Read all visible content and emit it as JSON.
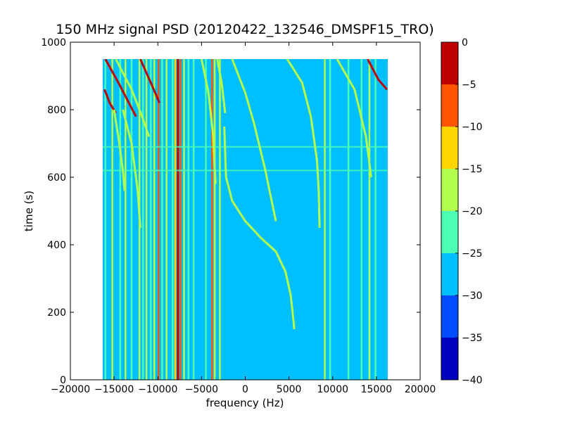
{
  "chart_data": {
    "type": "heatmap",
    "title": "150 MHz signal PSD (20120422_132546_DMSPF15_TRO)",
    "xlabel": "frequency (Hz)",
    "ylabel": "time (s)",
    "xlim": [
      -20000,
      20000
    ],
    "ylim": [
      0,
      1000
    ],
    "x_ticks": [
      -20000,
      -15000,
      -10000,
      -5000,
      0,
      5000,
      10000,
      15000,
      20000
    ],
    "x_tick_labels": [
      "−20000",
      "−15000",
      "−10000",
      "−5000",
      "0",
      "5000",
      "10000",
      "15000",
      "20000"
    ],
    "y_ticks": [
      0,
      200,
      400,
      600,
      800,
      1000
    ],
    "y_tick_labels": [
      "0",
      "200",
      "400",
      "600",
      "800",
      "1000"
    ],
    "data_extent": {
      "x": [
        -16300,
        16300
      ],
      "y": [
        0,
        950
      ]
    },
    "background_level": -27.5,
    "colorbar": {
      "range": [
        -40,
        0
      ],
      "levels": [
        -40,
        -35,
        -30,
        -25,
        -20,
        -15,
        -10,
        -5,
        0
      ],
      "tick_labels": [
        "−40",
        "−35",
        "−30",
        "−25",
        "−20",
        "−15",
        "−10",
        "−5",
        "0"
      ],
      "colors": [
        "#0000bf",
        "#004cff",
        "#00bfff",
        "#4dffb2",
        "#b3ff4d",
        "#ffd400",
        "#ff5500",
        "#bf0000"
      ]
    },
    "vertical_lines": [
      {
        "x": -16000,
        "level": -22
      },
      {
        "x": -15200,
        "level": -17
      },
      {
        "x": -14300,
        "level": -22
      },
      {
        "x": -13700,
        "level": -17
      },
      {
        "x": -13000,
        "level": -22
      },
      {
        "x": -12100,
        "level": -17
      },
      {
        "x": -11700,
        "level": -22
      },
      {
        "x": -11300,
        "level": -17
      },
      {
        "x": -10800,
        "level": -22
      },
      {
        "x": -10400,
        "level": -17
      },
      {
        "x": -9900,
        "level": -8
      },
      {
        "x": -9500,
        "level": -22
      },
      {
        "x": -9000,
        "level": -17
      },
      {
        "x": -8300,
        "level": -22
      },
      {
        "x": -8000,
        "level": -12
      },
      {
        "x": -7700,
        "level": -3
      },
      {
        "x": -7400,
        "level": -8
      },
      {
        "x": -7000,
        "level": -17
      },
      {
        "x": -6500,
        "level": -22
      },
      {
        "x": -5900,
        "level": -22
      },
      {
        "x": -4500,
        "level": -22
      },
      {
        "x": -3800,
        "level": -8
      },
      {
        "x": -3500,
        "level": -17
      },
      {
        "x": -2900,
        "level": -17
      },
      {
        "x": 9100,
        "level": -17
      },
      {
        "x": 9700,
        "level": -22
      },
      {
        "x": 11800,
        "level": -22
      },
      {
        "x": 13300,
        "level": -22
      },
      {
        "x": 14200,
        "level": -17
      },
      {
        "x": 14900,
        "level": -22
      }
    ],
    "curves": [
      {
        "level": -3,
        "points": [
          [
            -16100,
            860
          ],
          [
            -15500,
            820
          ],
          [
            -14800,
            790
          ]
        ]
      },
      {
        "level": -3,
        "points": [
          [
            -16000,
            950
          ],
          [
            -14500,
            880
          ],
          [
            -13300,
            820
          ],
          [
            -12500,
            780
          ]
        ]
      },
      {
        "level": -3,
        "points": [
          [
            -12000,
            950
          ],
          [
            -10800,
            880
          ],
          [
            -9800,
            820
          ]
        ]
      },
      {
        "level": -17,
        "points": [
          [
            -14800,
            950
          ],
          [
            -13000,
            860
          ],
          [
            -11800,
            780
          ],
          [
            -11000,
            720
          ]
        ]
      },
      {
        "level": -17,
        "points": [
          [
            -15000,
            800
          ],
          [
            -14400,
            700
          ],
          [
            -14000,
            620
          ],
          [
            -13800,
            560
          ]
        ]
      },
      {
        "level": -17,
        "points": [
          [
            -14000,
            800
          ],
          [
            -13000,
            700
          ],
          [
            -12300,
            560
          ],
          [
            -12000,
            450
          ]
        ]
      },
      {
        "level": -17,
        "points": [
          [
            -5000,
            950
          ],
          [
            -4200,
            850
          ],
          [
            -3700,
            730
          ],
          [
            -3400,
            580
          ]
        ]
      },
      {
        "level": -17,
        "points": [
          [
            -3200,
            950
          ],
          [
            -2700,
            880
          ],
          [
            -2300,
            790
          ]
        ]
      },
      {
        "level": -17,
        "points": [
          [
            -1500,
            950
          ],
          [
            0,
            850
          ],
          [
            1000,
            760
          ],
          [
            2300,
            620
          ],
          [
            3100,
            520
          ],
          [
            3500,
            470
          ]
        ]
      },
      {
        "level": -17,
        "points": [
          [
            -2400,
            750
          ],
          [
            -2200,
            600
          ],
          [
            -1500,
            530
          ],
          [
            0,
            470
          ],
          [
            1800,
            420
          ],
          [
            3500,
            380
          ],
          [
            4600,
            320
          ],
          [
            5200,
            250
          ],
          [
            5500,
            180
          ],
          [
            5600,
            150
          ]
        ]
      },
      {
        "level": -17,
        "points": [
          [
            4800,
            950
          ],
          [
            6500,
            880
          ],
          [
            7500,
            780
          ],
          [
            8200,
            650
          ],
          [
            8400,
            560
          ],
          [
            8500,
            450
          ]
        ]
      },
      {
        "level": -17,
        "points": [
          [
            10500,
            950
          ],
          [
            12500,
            860
          ],
          [
            13800,
            720
          ],
          [
            14400,
            600
          ]
        ]
      },
      {
        "level": -3,
        "points": [
          [
            14000,
            950
          ],
          [
            15200,
            890
          ],
          [
            16200,
            860
          ]
        ]
      }
    ],
    "horizontal_lines": [
      {
        "y": 620,
        "level": -22
      },
      {
        "y": 690,
        "level": -22
      }
    ]
  }
}
